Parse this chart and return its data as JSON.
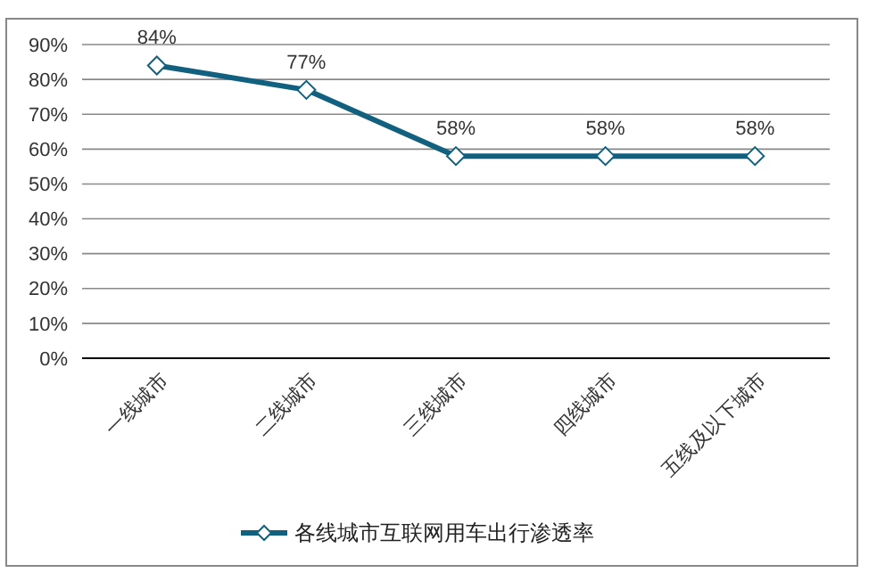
{
  "chart_data": {
    "type": "line",
    "categories": [
      "一线城市",
      "二线城市",
      "三线城市",
      "四线城市",
      "五线及以下城市"
    ],
    "series": [
      {
        "name": "各线城市互联网用车出行渗透率",
        "color": "#11607f",
        "values": [
          84,
          77,
          58,
          58,
          58
        ],
        "value_labels": [
          "84%",
          "77%",
          "58%",
          "58%",
          "58%"
        ]
      }
    ],
    "ylim": [
      0,
      90
    ],
    "yticks": [
      {
        "value": 0,
        "label": "0%"
      },
      {
        "value": 10,
        "label": "10%"
      },
      {
        "value": 20,
        "label": "20%"
      },
      {
        "value": 30,
        "label": "30%"
      },
      {
        "value": 40,
        "label": "40%"
      },
      {
        "value": 50,
        "label": "50%"
      },
      {
        "value": 60,
        "label": "60%"
      },
      {
        "value": 70,
        "label": "70%"
      },
      {
        "value": 80,
        "label": "80%"
      },
      {
        "value": 90,
        "label": "90%"
      }
    ],
    "grid": "y",
    "legend": "bottom",
    "marker": "diamond",
    "line_style": "solid"
  }
}
